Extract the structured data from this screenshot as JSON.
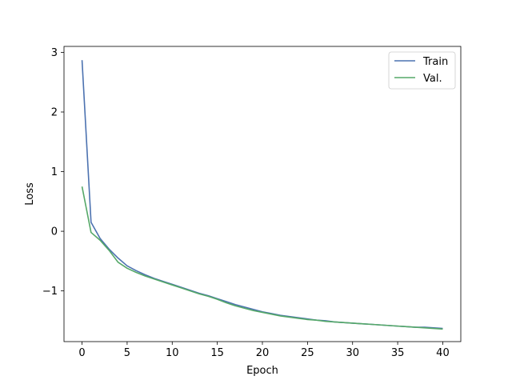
{
  "chart_data": {
    "type": "line",
    "xlabel": "Epoch",
    "ylabel": "Loss",
    "xlim": [
      -2,
      42
    ],
    "ylim": [
      -1.85,
      3.1
    ],
    "xticks": [
      0,
      5,
      10,
      15,
      20,
      25,
      30,
      35,
      40
    ],
    "xtick_labels": [
      "0",
      "5",
      "10",
      "15",
      "20",
      "25",
      "30",
      "35",
      "40"
    ],
    "yticks": [
      -1,
      0,
      1,
      2,
      3
    ],
    "ytick_labels": [
      "−1",
      "0",
      "1",
      "2",
      "3"
    ],
    "grid": false,
    "legend_position": "top-right",
    "series": [
      {
        "name": "Train",
        "color": "#4c72b0",
        "x": [
          0,
          1,
          2,
          3,
          4,
          5,
          6,
          7,
          8,
          9,
          10,
          11,
          12,
          13,
          14,
          15,
          16,
          17,
          18,
          19,
          20,
          21,
          22,
          23,
          24,
          25,
          26,
          27,
          28,
          29,
          30,
          31,
          32,
          33,
          34,
          35,
          36,
          37,
          38,
          39,
          40
        ],
        "y": [
          2.87,
          0.15,
          -0.12,
          -0.3,
          -0.45,
          -0.58,
          -0.66,
          -0.73,
          -0.79,
          -0.84,
          -0.89,
          -0.94,
          -0.99,
          -1.04,
          -1.08,
          -1.13,
          -1.18,
          -1.23,
          -1.27,
          -1.31,
          -1.35,
          -1.38,
          -1.41,
          -1.43,
          -1.45,
          -1.47,
          -1.49,
          -1.5,
          -1.52,
          -1.53,
          -1.54,
          -1.55,
          -1.56,
          -1.57,
          -1.58,
          -1.59,
          -1.6,
          -1.61,
          -1.61,
          -1.62,
          -1.63
        ]
      },
      {
        "name": "Val.",
        "color": "#55a868",
        "x": [
          0,
          1,
          2,
          3,
          4,
          5,
          6,
          7,
          8,
          9,
          10,
          11,
          12,
          13,
          14,
          15,
          16,
          17,
          18,
          19,
          20,
          21,
          22,
          23,
          24,
          25,
          26,
          27,
          28,
          29,
          30,
          31,
          32,
          33,
          34,
          35,
          36,
          37,
          38,
          39,
          40
        ],
        "y": [
          0.75,
          -0.02,
          -0.15,
          -0.32,
          -0.52,
          -0.62,
          -0.69,
          -0.75,
          -0.8,
          -0.85,
          -0.9,
          -0.95,
          -1.0,
          -1.05,
          -1.09,
          -1.14,
          -1.2,
          -1.25,
          -1.29,
          -1.33,
          -1.36,
          -1.39,
          -1.42,
          -1.44,
          -1.46,
          -1.48,
          -1.49,
          -1.51,
          -1.52,
          -1.53,
          -1.54,
          -1.55,
          -1.56,
          -1.57,
          -1.58,
          -1.59,
          -1.6,
          -1.61,
          -1.62,
          -1.63,
          -1.64
        ]
      }
    ]
  }
}
